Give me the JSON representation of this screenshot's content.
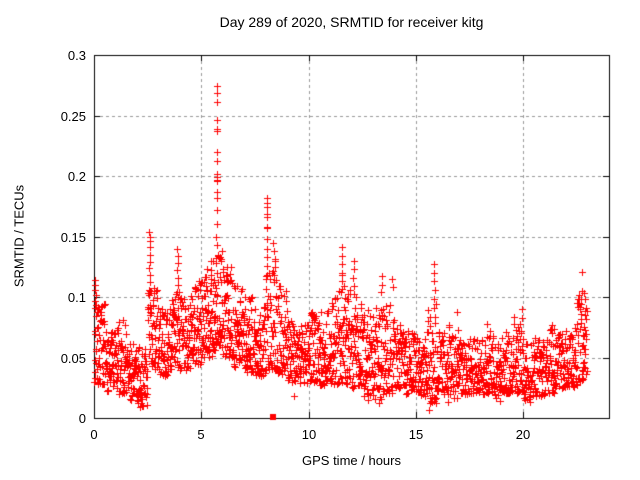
{
  "chart_data": {
    "type": "scatter",
    "title": "Day 289 of 2020, SRMTID for receiver kitg",
    "xlabel": "GPS time / hours",
    "ylabel": "SRMTID / TECUs",
    "xlim": [
      0,
      24
    ],
    "ylim": [
      0,
      0.3
    ],
    "xticks": [
      0,
      5,
      10,
      15,
      20
    ],
    "xtick_labels": [
      "0",
      "5",
      "10",
      "15",
      "20"
    ],
    "yticks": [
      0,
      0.05,
      0.1,
      0.15,
      0.2,
      0.25,
      0.3
    ],
    "ytick_labels": [
      "0",
      "0.05",
      "0.1",
      "0.15",
      "0.2",
      "0.25",
      "0.3"
    ],
    "grid": true,
    "legend": null,
    "marker": {
      "shape": "plus",
      "color": "#ff0000",
      "size": 7
    },
    "grid_color": "#999999",
    "border_color": "#000000",
    "flagged_point": {
      "shape": "filled-square",
      "color": "#ff0000",
      "x": 8.34,
      "y": 0,
      "size": 6
    },
    "notable_points": [
      [
        5.72,
        0.274
      ],
      [
        5.73,
        0.269
      ],
      [
        5.72,
        0.261
      ],
      [
        5.73,
        0.246
      ],
      [
        5.72,
        0.239
      ],
      [
        5.74,
        0.237
      ],
      [
        5.73,
        0.22
      ],
      [
        5.72,
        0.212
      ],
      [
        5.73,
        0.202
      ],
      [
        5.74,
        0.199
      ],
      [
        5.71,
        0.197
      ],
      [
        5.72,
        0.196
      ],
      [
        5.73,
        0.187
      ],
      [
        5.72,
        0.182
      ],
      [
        5.73,
        0.172
      ],
      [
        5.74,
        0.16
      ],
      [
        5.7,
        0.15
      ],
      [
        5.75,
        0.143
      ],
      [
        5.76,
        0.135
      ],
      [
        5.7,
        0.128
      ],
      [
        5.73,
        0.12
      ],
      [
        8.05,
        0.182
      ],
      [
        8.06,
        0.178
      ],
      [
        8.06,
        0.174
      ],
      [
        8.07,
        0.169
      ],
      [
        8.05,
        0.166
      ],
      [
        8.06,
        0.158
      ],
      [
        8.07,
        0.157
      ],
      [
        8.06,
        0.148
      ],
      [
        8.05,
        0.14
      ],
      [
        8.07,
        0.133
      ],
      [
        8.06,
        0.126
      ],
      [
        8.05,
        0.118
      ],
      [
        2.58,
        0.154
      ],
      [
        2.6,
        0.15
      ],
      [
        2.62,
        0.146
      ],
      [
        2.59,
        0.141
      ],
      [
        2.61,
        0.135
      ],
      [
        2.6,
        0.129
      ],
      [
        2.58,
        0.124
      ],
      [
        2.62,
        0.118
      ],
      [
        2.6,
        0.112
      ],
      [
        2.59,
        0.105
      ],
      [
        3.88,
        0.14
      ],
      [
        3.9,
        0.134
      ],
      [
        3.92,
        0.128
      ],
      [
        3.89,
        0.122
      ],
      [
        3.91,
        0.116
      ],
      [
        3.9,
        0.11
      ],
      [
        3.88,
        0.104
      ],
      [
        0.05,
        0.114
      ],
      [
        0.06,
        0.11
      ],
      [
        0.05,
        0.106
      ],
      [
        0.07,
        0.102
      ],
      [
        0.05,
        0.097
      ],
      [
        0.06,
        0.091
      ],
      [
        5.45,
        0.13
      ],
      [
        5.46,
        0.122
      ],
      [
        5.44,
        0.115
      ],
      [
        6.2,
        0.125
      ],
      [
        6.21,
        0.118
      ],
      [
        6.19,
        0.112
      ],
      [
        8.35,
        0.145
      ],
      [
        8.38,
        0.138
      ],
      [
        8.42,
        0.131
      ],
      [
        8.45,
        0.125
      ],
      [
        8.4,
        0.118
      ],
      [
        11.55,
        0.141
      ],
      [
        11.56,
        0.134
      ],
      [
        11.54,
        0.127
      ],
      [
        11.57,
        0.12
      ],
      [
        11.55,
        0.113
      ],
      [
        11.56,
        0.107
      ],
      [
        12.1,
        0.13
      ],
      [
        12.12,
        0.123
      ],
      [
        12.08,
        0.116
      ],
      [
        12.11,
        0.109
      ],
      [
        13.4,
        0.117
      ],
      [
        13.42,
        0.11
      ],
      [
        13.38,
        0.104
      ],
      [
        13.9,
        0.115
      ],
      [
        13.92,
        0.108
      ],
      [
        15.85,
        0.127
      ],
      [
        15.86,
        0.12
      ],
      [
        15.84,
        0.113
      ],
      [
        15.87,
        0.106
      ],
      [
        15.85,
        0.098
      ],
      [
        15.86,
        0.091
      ],
      [
        16.9,
        0.088
      ],
      [
        18.3,
        0.078
      ],
      [
        19.95,
        0.09
      ],
      [
        19.96,
        0.083
      ],
      [
        21.35,
        0.077
      ],
      [
        22.75,
        0.121
      ],
      [
        22.76,
        0.105
      ],
      [
        22.85,
        0.103
      ],
      [
        22.9,
        0.098
      ],
      [
        2.15,
        0.009
      ],
      [
        2.2,
        0.012
      ],
      [
        9.3,
        0.018
      ],
      [
        12.75,
        0.015
      ],
      [
        13.3,
        0.012
      ],
      [
        15.6,
        0.007
      ],
      [
        16.5,
        0.013
      ],
      [
        18.9,
        0.014
      ],
      [
        20.3,
        0.013
      ]
    ],
    "density_bands": [
      [
        0.02,
        0.5,
        0.028,
        0.095,
        55
      ],
      [
        0.5,
        1.0,
        0.022,
        0.072,
        52
      ],
      [
        1.0,
        1.5,
        0.02,
        0.082,
        52
      ],
      [
        1.5,
        2.0,
        0.014,
        0.065,
        50
      ],
      [
        2.0,
        2.5,
        0.01,
        0.06,
        46
      ],
      [
        2.5,
        3.0,
        0.04,
        0.11,
        55
      ],
      [
        3.0,
        3.5,
        0.035,
        0.09,
        52
      ],
      [
        3.5,
        4.0,
        0.04,
        0.105,
        54
      ],
      [
        4.0,
        4.5,
        0.04,
        0.1,
        52
      ],
      [
        4.5,
        5.0,
        0.042,
        0.115,
        55
      ],
      [
        5.0,
        5.5,
        0.05,
        0.125,
        55
      ],
      [
        5.5,
        6.0,
        0.055,
        0.14,
        58
      ],
      [
        6.0,
        6.5,
        0.05,
        0.125,
        55
      ],
      [
        6.5,
        7.0,
        0.042,
        0.11,
        52
      ],
      [
        7.0,
        7.5,
        0.038,
        0.1,
        52
      ],
      [
        7.5,
        8.0,
        0.035,
        0.092,
        50
      ],
      [
        8.0,
        8.5,
        0.04,
        0.13,
        55
      ],
      [
        8.5,
        9.0,
        0.035,
        0.11,
        52
      ],
      [
        9.0,
        9.5,
        0.03,
        0.08,
        50
      ],
      [
        9.5,
        10.0,
        0.028,
        0.08,
        50
      ],
      [
        10.0,
        10.5,
        0.03,
        0.088,
        52
      ],
      [
        10.5,
        11.0,
        0.026,
        0.092,
        52
      ],
      [
        11.0,
        11.5,
        0.028,
        0.105,
        52
      ],
      [
        11.5,
        12.0,
        0.028,
        0.12,
        54
      ],
      [
        12.0,
        12.5,
        0.025,
        0.105,
        54
      ],
      [
        12.5,
        13.0,
        0.018,
        0.09,
        50
      ],
      [
        13.0,
        13.5,
        0.015,
        0.095,
        50
      ],
      [
        13.5,
        14.0,
        0.02,
        0.1,
        50
      ],
      [
        14.0,
        14.5,
        0.025,
        0.078,
        50
      ],
      [
        14.5,
        15.0,
        0.02,
        0.072,
        50
      ],
      [
        15.0,
        15.5,
        0.018,
        0.068,
        48
      ],
      [
        15.5,
        16.0,
        0.012,
        0.095,
        50
      ],
      [
        16.0,
        16.5,
        0.02,
        0.072,
        48
      ],
      [
        16.5,
        17.0,
        0.016,
        0.082,
        48
      ],
      [
        17.0,
        17.5,
        0.02,
        0.072,
        48
      ],
      [
        17.5,
        18.0,
        0.02,
        0.068,
        48
      ],
      [
        18.0,
        18.5,
        0.02,
        0.075,
        48
      ],
      [
        18.5,
        19.0,
        0.016,
        0.068,
        48
      ],
      [
        19.0,
        19.5,
        0.02,
        0.072,
        48
      ],
      [
        19.5,
        20.0,
        0.02,
        0.085,
        48
      ],
      [
        20.0,
        20.5,
        0.015,
        0.062,
        48
      ],
      [
        20.5,
        21.0,
        0.018,
        0.068,
        48
      ],
      [
        21.0,
        21.5,
        0.02,
        0.075,
        48
      ],
      [
        21.5,
        22.0,
        0.024,
        0.072,
        48
      ],
      [
        22.0,
        22.5,
        0.026,
        0.08,
        50
      ],
      [
        22.5,
        22.97,
        0.03,
        0.105,
        52
      ]
    ],
    "render_seed": 7
  }
}
